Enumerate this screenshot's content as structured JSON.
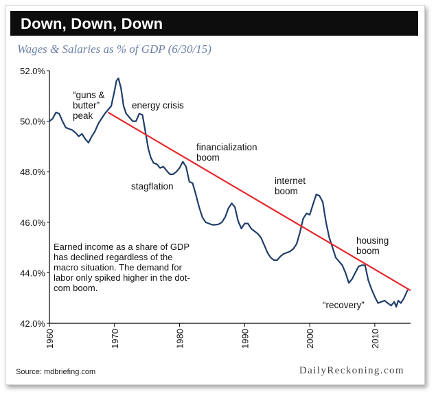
{
  "header": {
    "title": "Down, Down, Down"
  },
  "subtitle": "Wages & Salaries as % of GDP (6/30/15)",
  "source": "Source: mdbriefing.com",
  "brand": "DailyReckoning.com",
  "note": "Earned income as a share of GDP has declined regardless of the macro situation. The demand for labor only spiked higher in the dot-com boom.",
  "annotations": {
    "guns_butter": "“guns & butter” peak",
    "energy_crisis": "energy crisis",
    "financialization": "financialization boom",
    "stagflation": "stagflation",
    "internet": "internet boom",
    "housing": "housing boom",
    "recovery": "“recovery”"
  },
  "colors": {
    "series": "#1f3d6b",
    "trend": "#e8262b",
    "axis": "#000000"
  },
  "chart_data": {
    "type": "line",
    "title": "Wages & Salaries as % of GDP (6/30/15)",
    "xlabel": "",
    "ylabel": "",
    "xlim": [
      1960,
      2015.5
    ],
    "ylim": [
      42,
      52
    ],
    "x_ticks": [
      1960,
      1970,
      1980,
      1990,
      2000,
      2010
    ],
    "y_ticks": [
      42,
      44,
      46,
      48,
      50,
      52
    ],
    "y_tick_labels": [
      "42.0%",
      "44.0%",
      "46.0%",
      "48.0%",
      "50.0%",
      "52.0%"
    ],
    "grid": false,
    "series": [
      {
        "name": "Wages & Salaries % of GDP",
        "x": [
          1960,
          1960.5,
          1961,
          1961.5,
          1962,
          1962.5,
          1963,
          1963.5,
          1964,
          1964.5,
          1965,
          1965.5,
          1966,
          1966.5,
          1967,
          1967.5,
          1968,
          1968.5,
          1969,
          1969.5,
          1970,
          1970.3,
          1970.6,
          1971,
          1971.4,
          1971.8,
          1972.3,
          1972.8,
          1973.3,
          1973.8,
          1974.3,
          1974.8,
          1975.2,
          1975.6,
          1976,
          1976.5,
          1977,
          1977.5,
          1978,
          1978.5,
          1979,
          1979.5,
          1980,
          1980.5,
          1981,
          1981.5,
          1982,
          1982.5,
          1983,
          1983.5,
          1984,
          1984.5,
          1985,
          1985.5,
          1986,
          1986.5,
          1987,
          1987.5,
          1988,
          1988.5,
          1989,
          1989.5,
          1990,
          1990.5,
          1991,
          1991.5,
          1992,
          1992.5,
          1993,
          1993.5,
          1994,
          1994.5,
          1995,
          1995.5,
          1996,
          1996.5,
          1997,
          1997.5,
          1998,
          1998.5,
          1999,
          1999.5,
          2000,
          2000.5,
          2001,
          2001.5,
          2002,
          2002.5,
          2003,
          2003.5,
          2004,
          2004.5,
          2005,
          2005.5,
          2006,
          2006.5,
          2007,
          2007.5,
          2008,
          2008.5,
          2009,
          2009.5,
          2010,
          2010.5,
          2011,
          2011.5,
          2012,
          2012.5,
          2013,
          2013.3,
          2013.6,
          2014,
          2014.5,
          2015
        ],
        "y": [
          50.0,
          50.1,
          50.35,
          50.3,
          50.0,
          49.75,
          49.7,
          49.65,
          49.55,
          49.4,
          49.5,
          49.3,
          49.15,
          49.4,
          49.6,
          49.9,
          50.1,
          50.3,
          50.45,
          50.6,
          51.2,
          51.6,
          51.7,
          51.3,
          50.6,
          50.3,
          50.15,
          50.0,
          50.0,
          50.3,
          50.25,
          49.5,
          48.9,
          48.55,
          48.35,
          48.3,
          48.15,
          48.2,
          48.05,
          47.9,
          47.9,
          48.0,
          48.15,
          48.4,
          48.2,
          47.6,
          47.55,
          47.1,
          46.6,
          46.2,
          46.0,
          45.95,
          45.9,
          45.9,
          45.92,
          46.0,
          46.2,
          46.55,
          46.75,
          46.6,
          46.05,
          45.75,
          45.95,
          45.95,
          45.75,
          45.65,
          45.55,
          45.4,
          45.1,
          44.8,
          44.6,
          44.5,
          44.5,
          44.65,
          44.75,
          44.8,
          44.85,
          44.95,
          45.15,
          45.6,
          46.15,
          46.35,
          46.3,
          46.7,
          47.1,
          47.05,
          46.8,
          46.0,
          45.4,
          45.0,
          44.6,
          44.45,
          44.3,
          44.0,
          43.6,
          43.75,
          44.0,
          44.25,
          44.3,
          44.3,
          43.7,
          43.35,
          43.05,
          42.8,
          42.85,
          42.9,
          42.8,
          42.7,
          42.85,
          42.65,
          42.9,
          42.8,
          43.0,
          43.3
        ]
      },
      {
        "name": "Trend",
        "x": [
          1969,
          2015.5
        ],
        "y": [
          50.35,
          43.3
        ]
      }
    ]
  }
}
